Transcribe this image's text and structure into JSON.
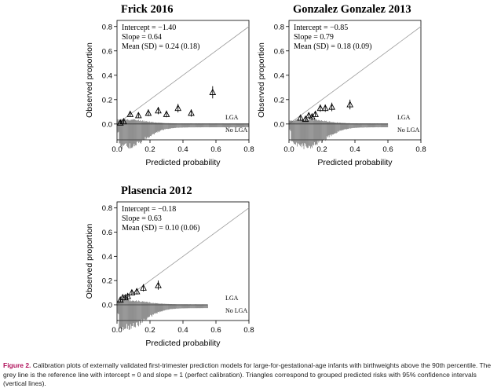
{
  "chart_data": [
    {
      "type": "scatter",
      "title": "Frick 2016",
      "xlabel": "Predicted probability",
      "ylabel": "Observed proportion",
      "xlim": [
        0,
        0.8
      ],
      "ylim": [
        -0.13,
        0.85
      ],
      "xticks": [
        "0.0",
        "0.2",
        "0.4",
        "0.6",
        "0.8"
      ],
      "yticks": [
        "0.0",
        "0.2",
        "0.4",
        "0.6",
        "0.8"
      ],
      "annotations": [
        "Intercept = −1.40",
        "Slope = 0.64",
        "Mean (SD) = 0.24 (0.18)"
      ],
      "histogram_labels": {
        "upper": "LGA",
        "lower": "No LGA"
      },
      "points": [
        {
          "x": 0.02,
          "y": 0.01,
          "lo": 0.0,
          "hi": 0.03
        },
        {
          "x": 0.04,
          "y": 0.02,
          "lo": 0.005,
          "hi": 0.035
        },
        {
          "x": 0.08,
          "y": 0.08,
          "lo": 0.06,
          "hi": 0.1
        },
        {
          "x": 0.13,
          "y": 0.07,
          "lo": 0.05,
          "hi": 0.09
        },
        {
          "x": 0.19,
          "y": 0.09,
          "lo": 0.065,
          "hi": 0.12
        },
        {
          "x": 0.25,
          "y": 0.11,
          "lo": 0.08,
          "hi": 0.14
        },
        {
          "x": 0.3,
          "y": 0.08,
          "lo": 0.055,
          "hi": 0.11
        },
        {
          "x": 0.37,
          "y": 0.13,
          "lo": 0.095,
          "hi": 0.165
        },
        {
          "x": 0.45,
          "y": 0.09,
          "lo": 0.06,
          "hi": 0.12
        },
        {
          "x": 0.58,
          "y": 0.26,
          "lo": 0.21,
          "hi": 0.31
        }
      ],
      "hist_upper_extent": 0.8,
      "hist_lower_extent": 0.8
    },
    {
      "type": "scatter",
      "title": "Gonzalez Gonzalez 2013",
      "xlabel": "Predicted probability",
      "ylabel": "Observed proportion",
      "xlim": [
        0,
        0.8
      ],
      "ylim": [
        -0.13,
        0.85
      ],
      "xticks": [
        "0.0",
        "0.2",
        "0.4",
        "0.6",
        "0.8"
      ],
      "yticks": [
        "0.0",
        "0.2",
        "0.4",
        "0.6",
        "0.8"
      ],
      "annotations": [
        "Intercept = −0.85",
        "Slope = 0.79",
        "Mean (SD) = 0.18 (0.09)"
      ],
      "histogram_labels": {
        "upper": "LGA",
        "lower": "No LGA"
      },
      "points": [
        {
          "x": 0.07,
          "y": 0.05,
          "lo": 0.035,
          "hi": 0.065
        },
        {
          "x": 0.1,
          "y": 0.04,
          "lo": 0.025,
          "hi": 0.055
        },
        {
          "x": 0.12,
          "y": 0.07,
          "lo": 0.05,
          "hi": 0.09
        },
        {
          "x": 0.14,
          "y": 0.06,
          "lo": 0.04,
          "hi": 0.08
        },
        {
          "x": 0.16,
          "y": 0.08,
          "lo": 0.06,
          "hi": 0.1
        },
        {
          "x": 0.19,
          "y": 0.13,
          "lo": 0.1,
          "hi": 0.16
        },
        {
          "x": 0.22,
          "y": 0.13,
          "lo": 0.1,
          "hi": 0.16
        },
        {
          "x": 0.26,
          "y": 0.14,
          "lo": 0.105,
          "hi": 0.175
        },
        {
          "x": 0.37,
          "y": 0.16,
          "lo": 0.12,
          "hi": 0.2
        }
      ],
      "hist_upper_extent": 0.6,
      "hist_lower_extent": 0.6
    },
    {
      "type": "scatter",
      "title": "Plasencia 2012",
      "xlabel": "Predicted probability",
      "ylabel": "Observed proportion",
      "xlim": [
        0,
        0.8
      ],
      "ylim": [
        -0.13,
        0.85
      ],
      "xticks": [
        "0.0",
        "0.2",
        "0.4",
        "0.6",
        "0.8"
      ],
      "yticks": [
        "0.0",
        "0.2",
        "0.4",
        "0.6",
        "0.8"
      ],
      "annotations": [
        "Intercept = −0.18",
        "Slope = 0.63",
        "Mean (SD) = 0.10 (0.06)"
      ],
      "histogram_labels": {
        "upper": "LGA",
        "lower": "No LGA"
      },
      "points": [
        {
          "x": 0.02,
          "y": 0.04,
          "lo": 0.025,
          "hi": 0.055
        },
        {
          "x": 0.035,
          "y": 0.06,
          "lo": 0.045,
          "hi": 0.075
        },
        {
          "x": 0.05,
          "y": 0.06,
          "lo": 0.045,
          "hi": 0.075
        },
        {
          "x": 0.065,
          "y": 0.07,
          "lo": 0.05,
          "hi": 0.09
        },
        {
          "x": 0.09,
          "y": 0.1,
          "lo": 0.08,
          "hi": 0.12
        },
        {
          "x": 0.12,
          "y": 0.11,
          "lo": 0.085,
          "hi": 0.135
        },
        {
          "x": 0.16,
          "y": 0.14,
          "lo": 0.11,
          "hi": 0.17
        },
        {
          "x": 0.25,
          "y": 0.16,
          "lo": 0.125,
          "hi": 0.2
        }
      ],
      "hist_upper_extent": 0.55,
      "hist_lower_extent": 0.55
    }
  ],
  "caption": {
    "label": "Figure 2.",
    "text": " Calibration plots of externally validated first-trimester prediction models for large-for-gestational-age infants with birthweights above the 90th percentile. The grey line is the reference line with intercept = 0 and slope = 1 (perfect calibration). Triangles correspond to grouped predicted risks with 95% confidence intervals (vertical lines)."
  }
}
